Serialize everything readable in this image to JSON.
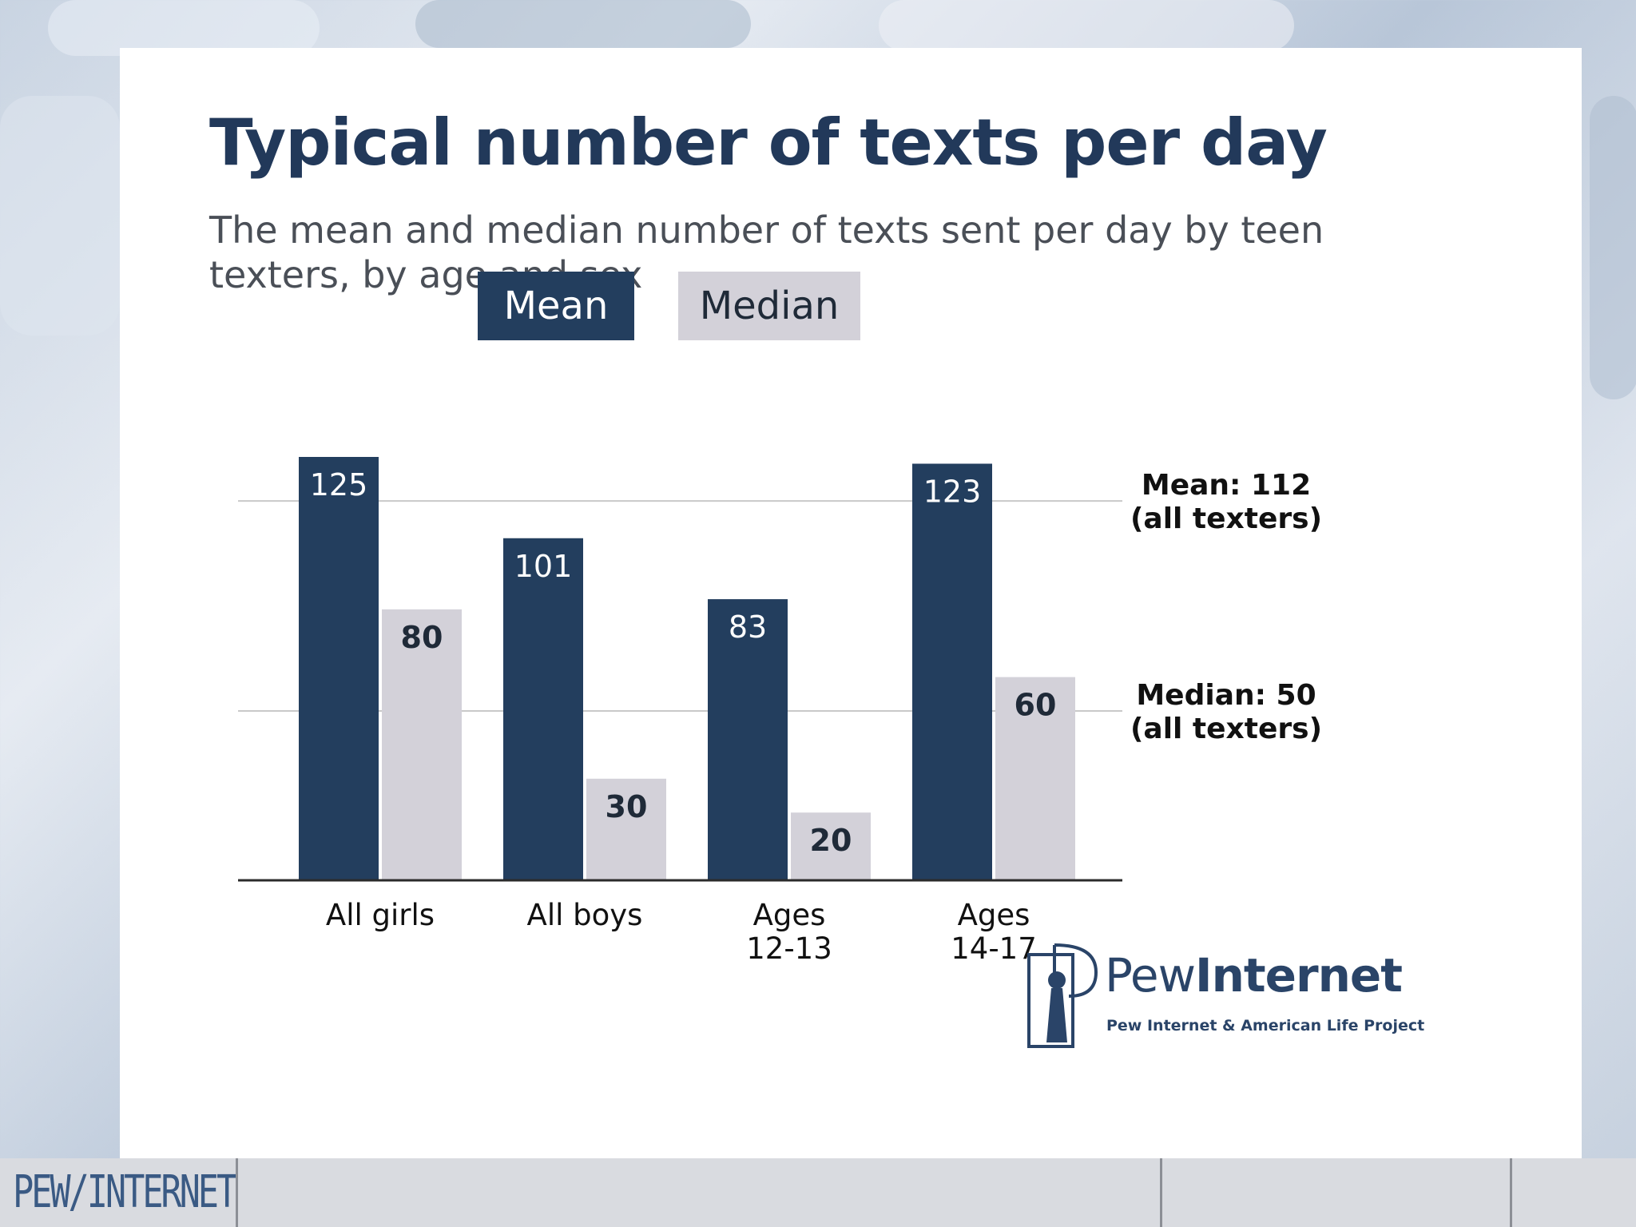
{
  "slide": {
    "title": "Typical number of texts per day",
    "subtitle": "The mean and median number of texts sent per day by teen texters, by age and sex"
  },
  "legend": {
    "mean": "Mean",
    "median": "Median"
  },
  "reference_lines": {
    "mean_label_1": "Mean: 112",
    "mean_label_2": "(all texters)",
    "median_label_1": "Median: 50",
    "median_label_2": "(all texters)"
  },
  "brand": {
    "name_light": "Pew",
    "name_bold": "Internet",
    "tagline": "Pew Internet & American Life Project"
  },
  "footer": {
    "logo": "PEW/INTERNET"
  },
  "colors": {
    "mean": "#233e5e",
    "median": "#d3d1d9",
    "axis": "#2b2b2b",
    "gridline": "#c9c9c9"
  },
  "chart_data": {
    "type": "bar",
    "title": "Typical number of texts per day",
    "subtitle": "The mean and median number of texts sent per day by teen texters, by age and sex",
    "categories": [
      [
        "All girls"
      ],
      [
        "All boys"
      ],
      [
        "Ages",
        "12-13"
      ],
      [
        "Ages",
        "14-17"
      ]
    ],
    "series": [
      {
        "name": "Mean",
        "values": [
          125,
          101,
          83,
          123
        ]
      },
      {
        "name": "Median",
        "values": [
          80,
          30,
          20,
          60
        ]
      }
    ],
    "reference_lines": [
      {
        "value": 112,
        "label": [
          "Mean: 112",
          "(all texters)"
        ]
      },
      {
        "value": 50,
        "label": [
          "Median: 50",
          "(all texters)"
        ]
      }
    ],
    "ylim": [
      0,
      125
    ],
    "legend_position": "top-center"
  }
}
